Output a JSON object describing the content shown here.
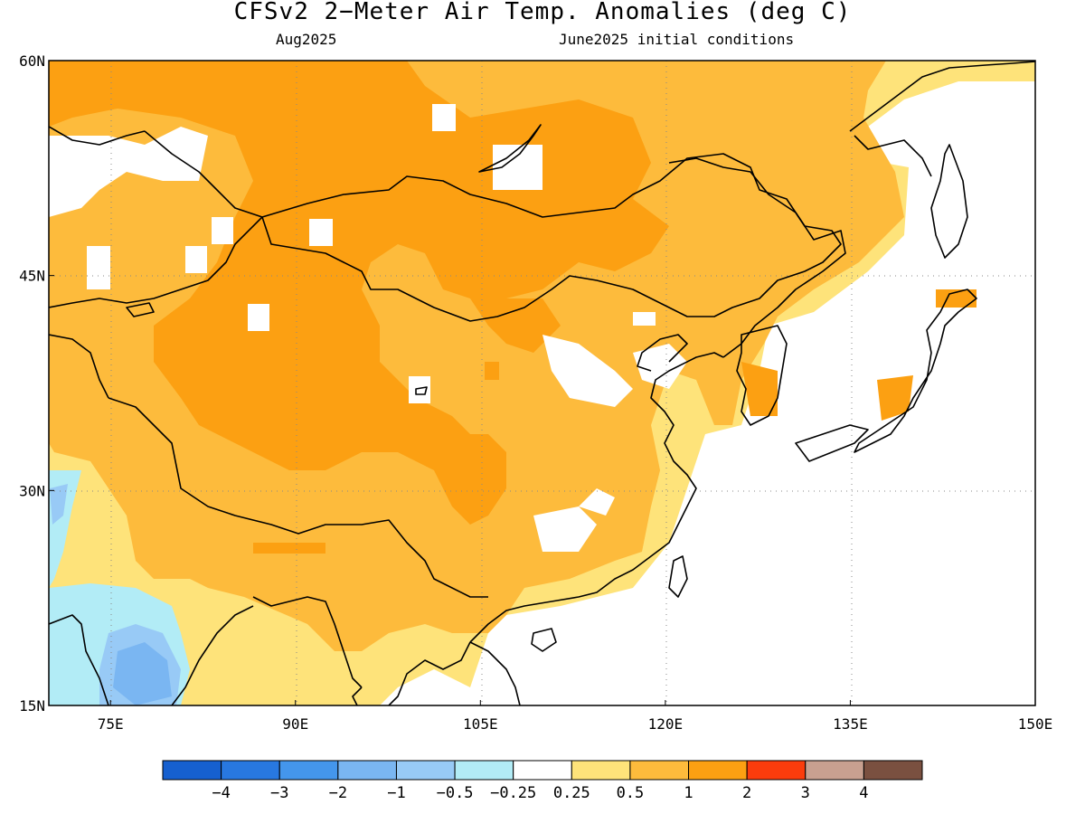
{
  "title": "CFSv2 2−Meter Air Temp. Anomalies (deg C)",
  "valid_month": "Aug2025",
  "init_conditions": "June2025 initial conditions",
  "map": {
    "lon_range": [
      70,
      150
    ],
    "lat_range": [
      15,
      60
    ],
    "lon_ticks": [
      {
        "value": 75,
        "label": "75E"
      },
      {
        "value": 90,
        "label": "90E"
      },
      {
        "value": 105,
        "label": "105E"
      },
      {
        "value": 120,
        "label": "120E"
      },
      {
        "value": 135,
        "label": "135E"
      },
      {
        "value": 150,
        "label": "150E"
      }
    ],
    "lat_ticks": [
      {
        "value": 15,
        "label": "15N"
      },
      {
        "value": 30,
        "label": "30N"
      },
      {
        "value": 45,
        "label": "45N"
      },
      {
        "value": 60,
        "label": "60N"
      }
    ],
    "gridlines": "dotted"
  },
  "colorbar": {
    "colors": [
      "#1660d0",
      "#2878e0",
      "#4496ec",
      "#7ab6f2",
      "#98caf6",
      "#b2ecf6",
      "#ffffff",
      "#fee37a",
      "#fdbb3c",
      "#fca012",
      "#fb3c0c",
      "#c8a090",
      "#7a5040"
    ],
    "labels": [
      "−4",
      "−3",
      "−2",
      "−1",
      "−0.5",
      "−0.25",
      "0.25",
      "0.5",
      "1",
      "2",
      "3",
      "4"
    ]
  }
}
